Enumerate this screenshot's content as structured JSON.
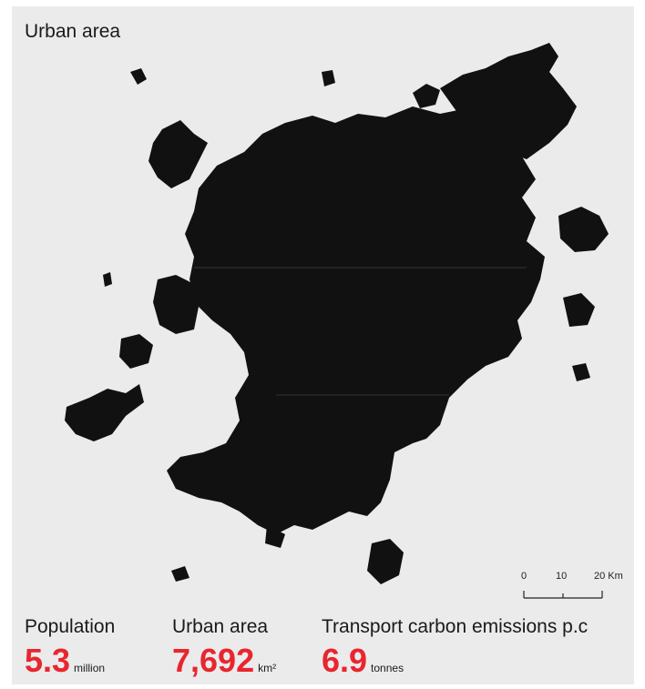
{
  "map": {
    "title": "Urban area",
    "fill_color": "#111111",
    "background_color": "#ebebeb"
  },
  "scale_bar": {
    "labels": [
      "0",
      "10",
      "20 Km"
    ]
  },
  "stats": [
    {
      "label": "Population",
      "value": "5.3",
      "unit": "million"
    },
    {
      "label": "Urban area",
      "value": "7,692",
      "unit": "km²"
    },
    {
      "label": "Transport carbon emissions p.c",
      "value": "6.9",
      "unit": "tonnes"
    }
  ],
  "accent_color": "#e8262e"
}
